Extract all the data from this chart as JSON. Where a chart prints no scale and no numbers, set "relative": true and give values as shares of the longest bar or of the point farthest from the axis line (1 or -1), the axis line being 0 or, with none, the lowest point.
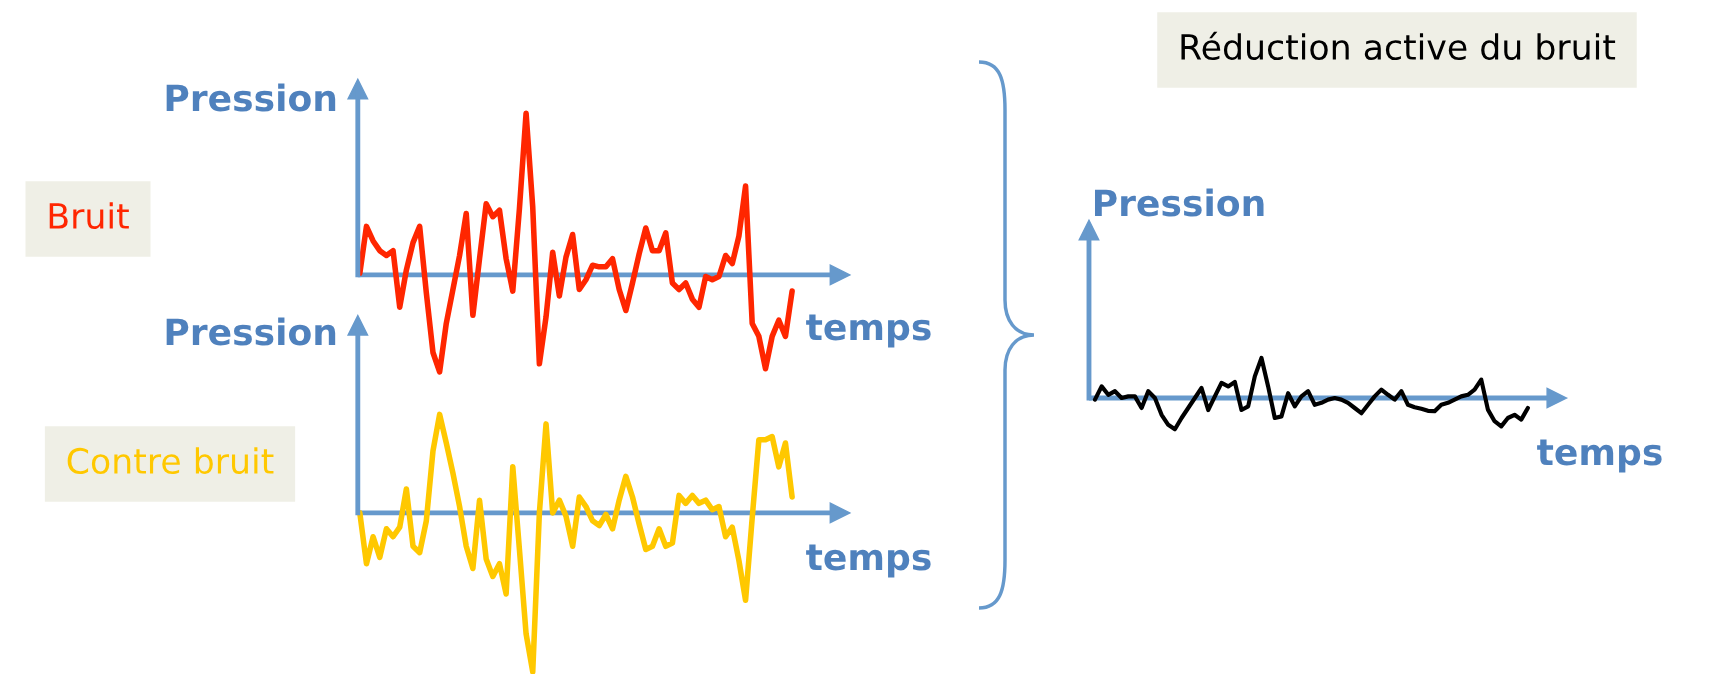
{
  "chart_data": [
    {
      "type": "line",
      "relative": true,
      "ref_lines": [
        {
          "axis": "y",
          "value": 0,
          "color": "#6699cc"
        }
      ],
      "xlabel": "temps",
      "ylabel": "Pression",
      "categories": [
        null,
        null,
        null,
        null,
        null,
        null,
        null,
        null,
        null,
        null,
        null,
        null,
        null,
        null,
        null,
        null,
        null,
        null,
        null,
        null,
        null,
        null,
        null,
        null,
        null,
        null,
        null,
        null,
        null,
        null,
        null,
        null,
        null,
        null,
        null,
        null,
        null,
        null,
        null,
        null,
        null,
        null,
        null,
        null,
        null,
        null,
        null,
        null,
        null,
        null,
        null,
        null,
        null,
        null,
        null,
        null,
        null,
        null,
        null,
        null,
        null,
        null,
        null,
        null,
        null,
        null
      ],
      "series": [
        {
          "name": "Bruit",
          "color": "#ff2600",
          "values": [
            0.01,
            0.3,
            0.21,
            0.15,
            0.12,
            0.15,
            -0.2,
            0.03,
            0.2,
            0.3,
            -0.11,
            -0.48,
            -0.6,
            -0.3,
            -0.09,
            0.12,
            0.38,
            -0.25,
            0.1,
            0.44,
            0.36,
            0.4,
            0.1,
            -0.1,
            0.41,
            1.0,
            0.42,
            -0.55,
            -0.26,
            0.14,
            -0.13,
            0.11,
            0.25,
            -0.09,
            -0.03,
            0.06,
            0.05,
            0.05,
            0.1,
            -0.09,
            -0.22,
            -0.05,
            0.13,
            0.29,
            0.15,
            0.15,
            0.26,
            -0.05,
            -0.09,
            -0.05,
            -0.15,
            -0.2,
            -0.01,
            -0.03,
            -0.01,
            0.12,
            0.07,
            0.24,
            0.55,
            -0.3,
            -0.38,
            -0.58,
            -0.38,
            -0.28,
            -0.38,
            -0.1
          ]
        }
      ]
    },
    {
      "type": "line",
      "relative": true,
      "ref_lines": [
        {
          "axis": "y",
          "value": 0,
          "color": "#6699cc"
        }
      ],
      "xlabel": "temps",
      "ylabel": "Pression",
      "categories": [
        null,
        null,
        null,
        null,
        null,
        null,
        null,
        null,
        null,
        null,
        null,
        null,
        null,
        null,
        null,
        null,
        null,
        null,
        null,
        null,
        null,
        null,
        null,
        null,
        null,
        null,
        null,
        null,
        null,
        null,
        null,
        null,
        null,
        null,
        null,
        null,
        null,
        null,
        null,
        null,
        null,
        null,
        null,
        null,
        null,
        null,
        null,
        null,
        null,
        null,
        null,
        null,
        null,
        null,
        null,
        null,
        null,
        null,
        null,
        null,
        null,
        null,
        null,
        null,
        null,
        null
      ],
      "series": [
        {
          "name": "Contre bruit",
          "color": "#ffc800",
          "values": [
            0.0,
            -0.32,
            -0.15,
            -0.28,
            -0.1,
            -0.15,
            -0.09,
            0.15,
            -0.21,
            -0.25,
            -0.05,
            0.39,
            0.62,
            0.44,
            0.25,
            0.04,
            -0.21,
            -0.35,
            0.08,
            -0.29,
            -0.4,
            -0.32,
            -0.51,
            0.29,
            -0.23,
            -0.76,
            -1.0,
            0.0,
            0.56,
            0.0,
            0.08,
            -0.02,
            -0.21,
            0.1,
            0.04,
            -0.05,
            -0.08,
            -0.01,
            -0.1,
            0.08,
            0.23,
            0.1,
            -0.07,
            -0.23,
            -0.21,
            -0.1,
            -0.21,
            -0.19,
            0.11,
            0.06,
            0.11,
            0.06,
            0.08,
            0.02,
            0.04,
            -0.15,
            -0.09,
            -0.3,
            -0.55,
            -0.03,
            0.46,
            0.46,
            0.48,
            0.29,
            0.44,
            0.1
          ]
        }
      ]
    },
    {
      "type": "line",
      "relative": true,
      "ref_lines": [
        {
          "axis": "y",
          "value": 0,
          "color": "#6699cc"
        }
      ],
      "title": "Réduction active du bruit",
      "xlabel": "temps",
      "ylabel": "Pression",
      "categories": [
        null,
        null,
        null,
        null,
        null,
        null,
        null,
        null,
        null,
        null,
        null,
        null,
        null,
        null,
        null,
        null,
        null,
        null,
        null,
        null,
        null,
        null,
        null,
        null,
        null,
        null,
        null,
        null,
        null,
        null,
        null,
        null,
        null,
        null,
        null,
        null,
        null,
        null,
        null,
        null,
        null,
        null,
        null,
        null,
        null,
        null,
        null,
        null,
        null,
        null,
        null,
        null,
        null,
        null,
        null,
        null,
        null,
        null,
        null,
        null,
        null,
        null,
        null,
        null,
        null,
        null
      ],
      "series": [
        {
          "color": "#000000",
          "values": [
            -0.04,
            0.29,
            0.08,
            0.17,
            0.0,
            0.04,
            0.04,
            -0.25,
            0.17,
            0.0,
            -0.42,
            -0.67,
            -0.78,
            -0.5,
            -0.25,
            0.0,
            0.25,
            -0.3,
            0.04,
            0.38,
            0.29,
            0.4,
            -0.3,
            -0.21,
            0.54,
            1.0,
            0.29,
            -0.5,
            -0.46,
            0.12,
            -0.21,
            0.04,
            0.17,
            -0.17,
            -0.12,
            -0.04,
            0.0,
            -0.04,
            -0.12,
            -0.25,
            -0.38,
            -0.17,
            0.04,
            0.21,
            0.08,
            -0.04,
            0.17,
            -0.17,
            -0.23,
            -0.27,
            -0.32,
            -0.33,
            -0.17,
            -0.12,
            -0.04,
            0.04,
            0.08,
            0.21,
            0.46,
            -0.29,
            -0.58,
            -0.71,
            -0.5,
            -0.42,
            -0.54,
            -0.25
          ]
        }
      ]
    }
  ]
}
